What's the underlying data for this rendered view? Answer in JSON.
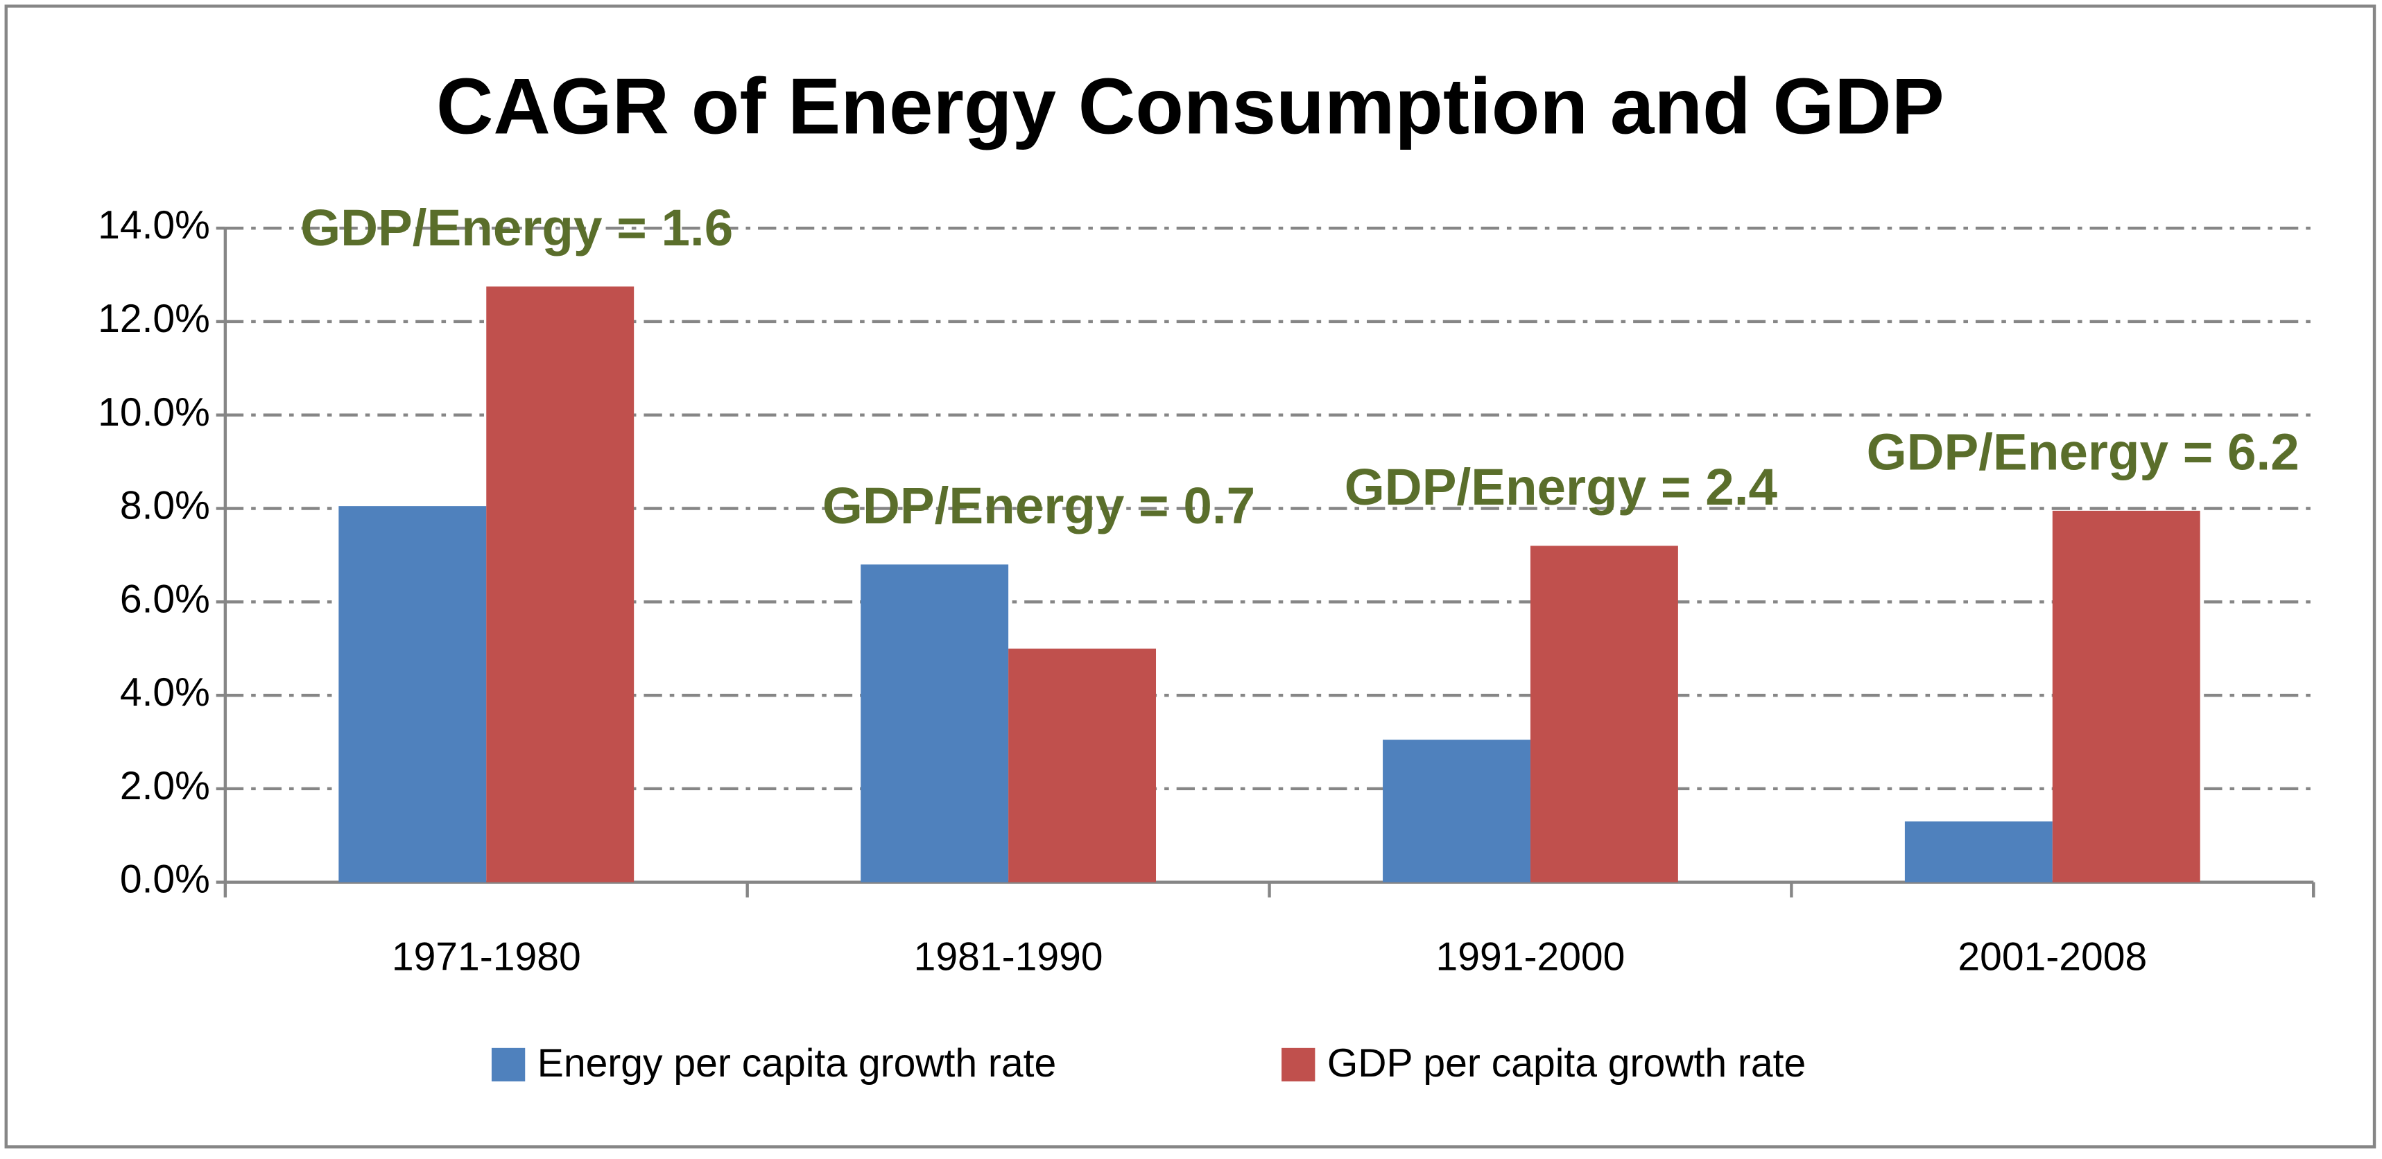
{
  "chart_data": {
    "type": "bar",
    "title": "CAGR of Energy Consumption and GDP",
    "categories": [
      "1971-1980",
      "1981-1990",
      "1991-2000",
      "2001-2008"
    ],
    "series": [
      {
        "name": "Energy per capita growth rate",
        "color": "#4f81bd",
        "values": [
          8.05,
          6.8,
          3.05,
          1.3
        ]
      },
      {
        "name": "GDP per capita growth rate",
        "color": "#c0504d",
        "values": [
          12.75,
          5.0,
          7.2,
          7.95
        ]
      }
    ],
    "annotations": [
      "GDP/Energy = 1.6",
      "GDP/Energy = 0.7",
      "GDP/Energy = 2.4",
      "GDP/Energy = 6.2"
    ],
    "annotation_color": "#5a6e2b",
    "ylim": [
      0,
      14
    ],
    "yticks": [
      {
        "value": 0,
        "label": "0.0%"
      },
      {
        "value": 2,
        "label": "2.0%"
      },
      {
        "value": 4,
        "label": "4.0%"
      },
      {
        "value": 6,
        "label": "6.0%"
      },
      {
        "value": 8,
        "label": "8.0%"
      },
      {
        "value": 10,
        "label": "10.0%"
      },
      {
        "value": 12,
        "label": "12.0%"
      },
      {
        "value": 14,
        "label": "14.0%"
      }
    ],
    "grid": true,
    "legend": "bottom"
  }
}
